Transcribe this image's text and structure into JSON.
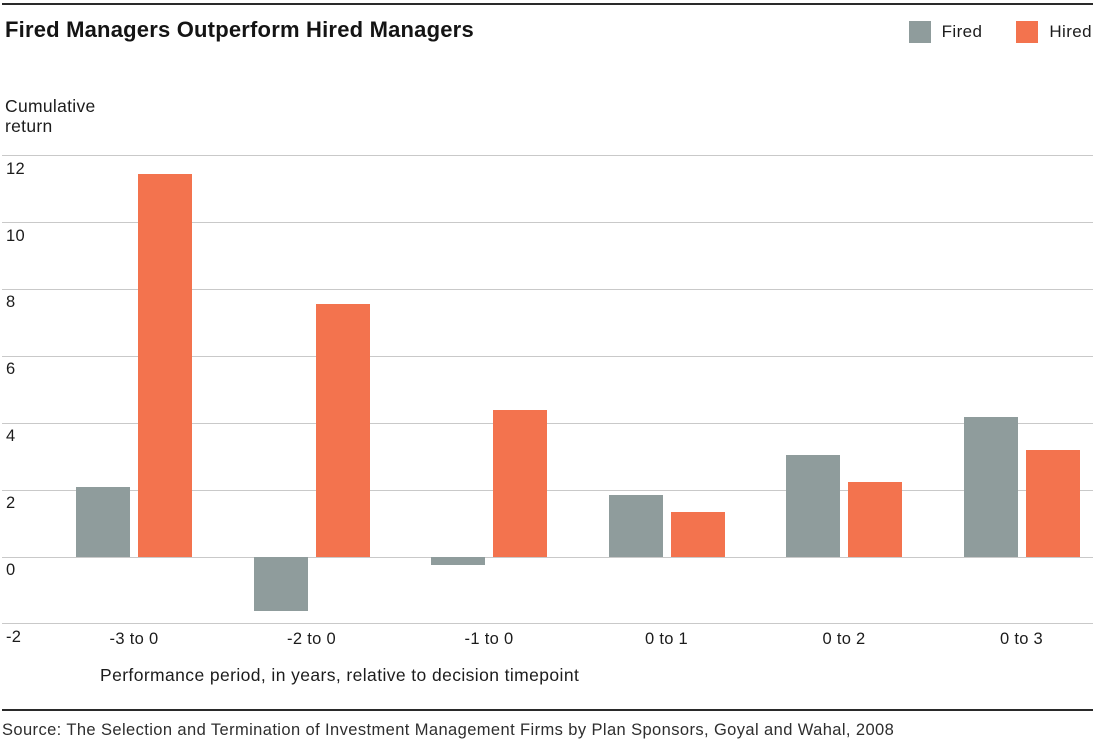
{
  "header": {
    "title": "Fired Managers Outperform Hired Managers",
    "legend": [
      {
        "label": "Fired",
        "color": "#8f9c9c"
      },
      {
        "label": "Hired",
        "color": "#f3734e"
      }
    ]
  },
  "chart_data": {
    "type": "bar",
    "title": "Fired Managers Outperform Hired Managers",
    "ylabel": "Cumulative return",
    "xlabel": "Performance period, in years, relative to decision timepoint",
    "categories": [
      "-3 to 0",
      "-2 to 0",
      "-1 to 0",
      "0 to 1",
      "0 to 2",
      "0 to 3"
    ],
    "series": [
      {
        "name": "Fired",
        "color": "#8f9c9c",
        "values": [
          2.1,
          -1.6,
          -0.25,
          1.85,
          3.05,
          4.2
        ]
      },
      {
        "name": "Hired",
        "color": "#f3734e",
        "values": [
          11.45,
          7.55,
          4.4,
          1.35,
          2.25,
          3.2
        ]
      }
    ],
    "yticks": [
      12,
      10,
      8,
      6,
      4,
      2,
      0,
      -2
    ],
    "ylim": [
      -2,
      12
    ],
    "grid": true,
    "gridline_color": "#c9c9c9",
    "legend_position": "top-right"
  },
  "source": "Source: The Selection and Termination of Investment Management Firms by Plan Sponsors, Goyal and Wahal, 2008"
}
